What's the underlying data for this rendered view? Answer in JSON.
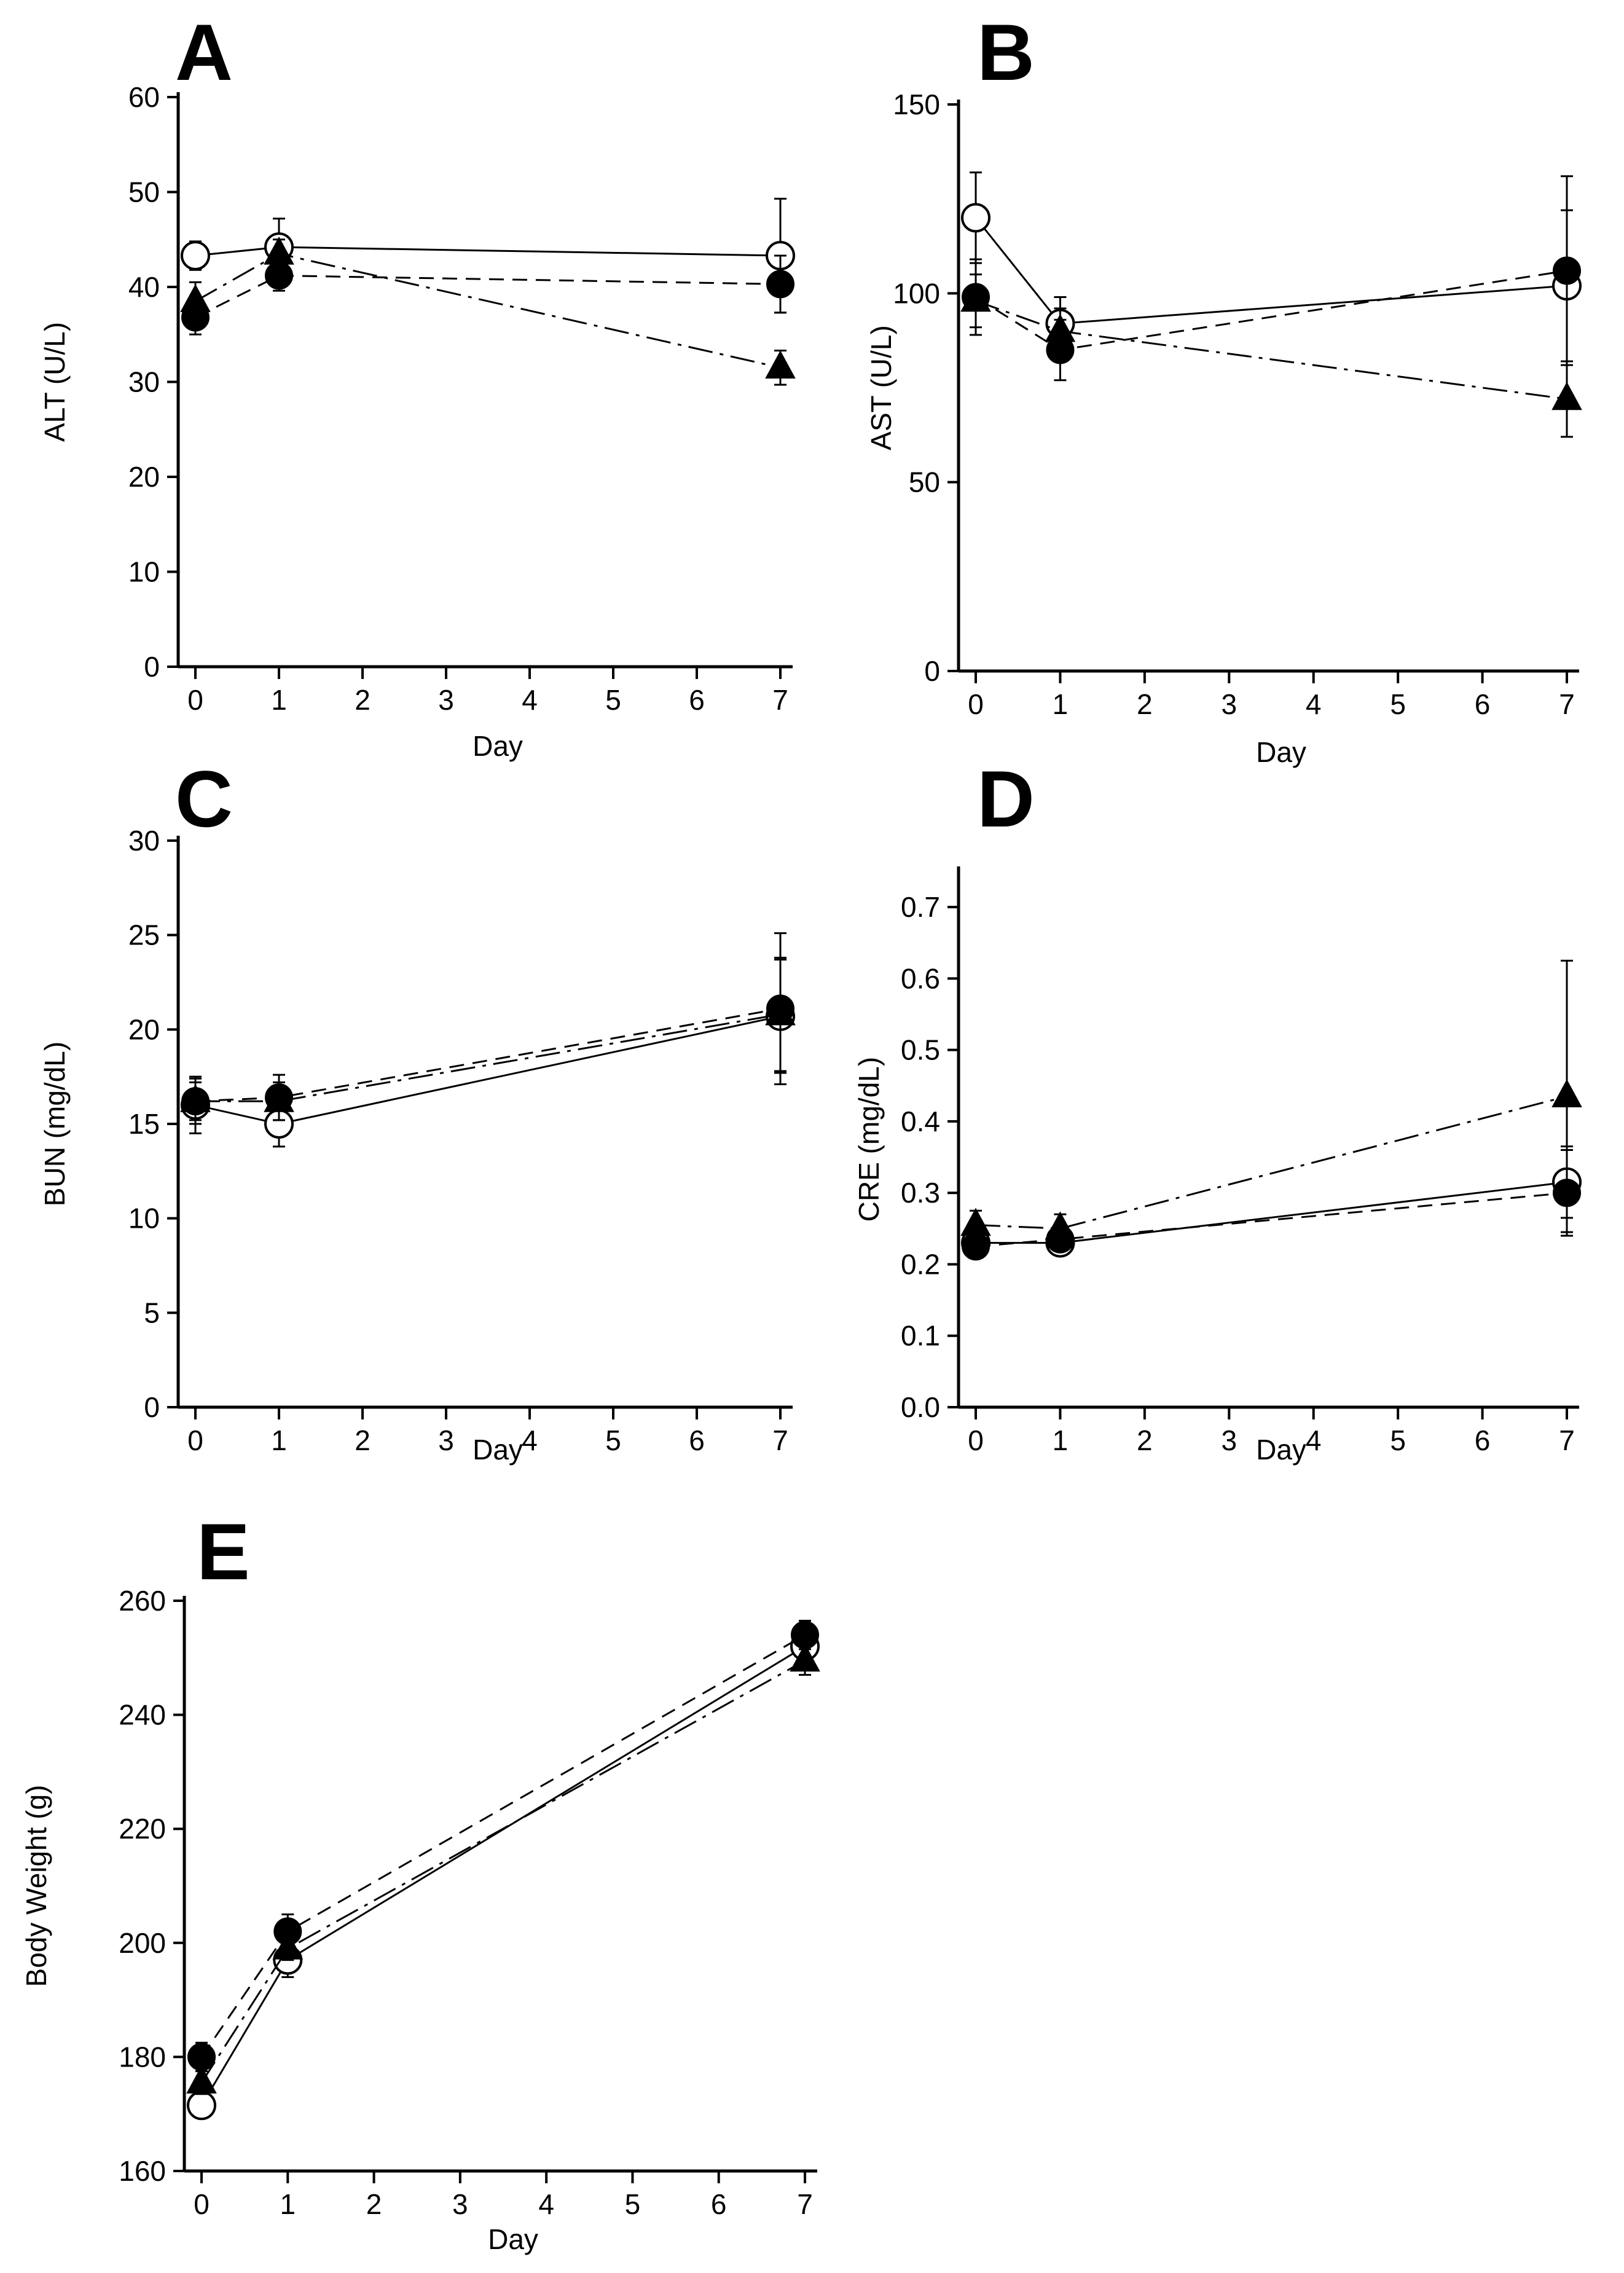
{
  "figure": {
    "title": ""
  },
  "chart_data": [
    {
      "panel": "A",
      "type": "line",
      "xlabel": "Day",
      "ylabel": "ALT (U/L)",
      "xlim": [
        0,
        7
      ],
      "ylim": [
        0,
        60
      ],
      "xticks": [
        0,
        1,
        2,
        3,
        4,
        5,
        6,
        7
      ],
      "yticks": [
        0,
        10,
        20,
        30,
        40,
        50,
        60
      ],
      "x": [
        0,
        1,
        7
      ],
      "series": [
        {
          "name": "open-circle",
          "marker": "open-circle",
          "line": "solid",
          "values": [
            43.3,
            44.2,
            43.3
          ],
          "errors": [
            1.5,
            3.0,
            6.0
          ]
        },
        {
          "name": "filled-circle",
          "marker": "filled-circle",
          "line": "dashed",
          "values": [
            36.8,
            41.2,
            40.3
          ],
          "errors": [
            1.8,
            1.6,
            3.0
          ]
        },
        {
          "name": "filled-triangle",
          "marker": "filled-triangle",
          "line": "dashdot",
          "values": [
            38.5,
            43.5,
            31.5
          ],
          "errors": [
            2.0,
            1.5,
            1.8
          ]
        }
      ]
    },
    {
      "panel": "B",
      "type": "line",
      "xlabel": "Day",
      "ylabel": "AST (U/L)",
      "xlim": [
        0,
        7
      ],
      "ylim": [
        0,
        150
      ],
      "xticks": [
        0,
        1,
        2,
        3,
        4,
        5,
        6,
        7
      ],
      "yticks": [
        0,
        50,
        100,
        150
      ],
      "x": [
        0,
        1,
        7
      ],
      "series": [
        {
          "name": "open-circle",
          "marker": "open-circle",
          "line": "solid",
          "values": [
            120,
            92,
            102
          ],
          "errors": [
            12,
            7,
            20
          ]
        },
        {
          "name": "filled-circle",
          "marker": "filled-circle",
          "line": "dashed",
          "values": [
            99,
            85,
            106
          ],
          "errors": [
            10,
            8,
            25
          ]
        },
        {
          "name": "filled-triangle",
          "marker": "filled-triangle",
          "line": "dashdot",
          "values": [
            98,
            90,
            72
          ],
          "errors": [
            7,
            6,
            10
          ]
        }
      ]
    },
    {
      "panel": "C",
      "type": "line",
      "xlabel": "Day",
      "ylabel": "BUN (mg/dL)",
      "xlim": [
        0,
        7
      ],
      "ylim": [
        0,
        30
      ],
      "xticks": [
        0,
        1,
        2,
        3,
        4,
        5,
        6,
        7
      ],
      "yticks": [
        0,
        5,
        10,
        15,
        20,
        25,
        30
      ],
      "x": [
        0,
        1,
        7
      ],
      "series": [
        {
          "name": "open-circle",
          "marker": "open-circle",
          "line": "solid",
          "values": [
            16.0,
            15.0,
            20.7
          ],
          "errors": [
            1.5,
            1.2,
            3.0
          ]
        },
        {
          "name": "filled-circle",
          "marker": "filled-circle",
          "line": "dashed",
          "values": [
            16.2,
            16.4,
            21.1
          ],
          "errors": [
            1.2,
            1.2,
            4.0
          ]
        },
        {
          "name": "filled-triangle",
          "marker": "filled-triangle",
          "line": "dashdot",
          "values": [
            16.2,
            16.2,
            20.8
          ],
          "errors": [
            1.0,
            1.0,
            3.0
          ]
        }
      ]
    },
    {
      "panel": "D",
      "type": "line",
      "xlabel": "Day",
      "ylabel": "CRE (mg/dL)",
      "xlim": [
        0,
        7
      ],
      "ylim": [
        0,
        0.75
      ],
      "xticks": [
        0,
        1,
        2,
        3,
        4,
        5,
        6,
        7
      ],
      "yticks": [
        0,
        0.1,
        0.2,
        0.3,
        0.4,
        0.5,
        0.6,
        0.7
      ],
      "x": [
        0,
        1,
        7
      ],
      "series": [
        {
          "name": "open-circle",
          "marker": "open-circle",
          "line": "solid",
          "values": [
            0.23,
            0.23,
            0.315
          ],
          "errors": [
            0.01,
            0.01,
            0.05
          ]
        },
        {
          "name": "filled-circle",
          "marker": "filled-circle",
          "line": "dashed",
          "values": [
            0.225,
            0.235,
            0.3
          ],
          "errors": [
            0.01,
            0.01,
            0.06
          ]
        },
        {
          "name": "filled-triangle",
          "marker": "filled-triangle",
          "line": "dashdot",
          "values": [
            0.255,
            0.25,
            0.435
          ],
          "errors": [
            0.02,
            0.02,
            0.19
          ]
        }
      ]
    },
    {
      "panel": "E",
      "type": "line",
      "xlabel": "Day",
      "ylabel": "Body Weight (g)",
      "xlim": [
        0,
        7
      ],
      "ylim": [
        160,
        260
      ],
      "xticks": [
        0,
        1,
        2,
        3,
        4,
        5,
        6,
        7
      ],
      "yticks": [
        160,
        180,
        200,
        220,
        240,
        260
      ],
      "x": [
        0,
        1,
        7
      ],
      "series": [
        {
          "name": "open-circle",
          "marker": "open-circle",
          "line": "solid",
          "values": [
            171.5,
            197,
            252
          ],
          "errors": [
            1.5,
            3.0,
            3.0
          ]
        },
        {
          "name": "filled-circle",
          "marker": "filled-circle",
          "line": "dashed",
          "values": [
            180,
            202,
            254
          ],
          "errors": [
            2.5,
            3.0,
            2.5
          ]
        },
        {
          "name": "filled-triangle",
          "marker": "filled-triangle",
          "line": "dashdot",
          "values": [
            175.5,
            199,
            249.5
          ],
          "errors": [
            2.0,
            2.0,
            2.5
          ]
        }
      ]
    }
  ]
}
